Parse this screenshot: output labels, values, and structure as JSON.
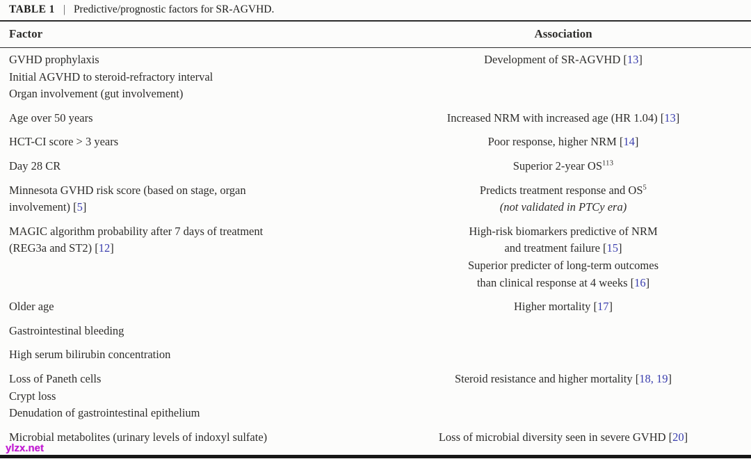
{
  "caption": {
    "label": "TABLE 1",
    "separator": "|",
    "title": "Predictive/prognostic factors for SR-AGVHD."
  },
  "header": {
    "factor": "Factor",
    "association": "Association"
  },
  "colors": {
    "text": "#2e2d2b",
    "rule": "#2b2b2b",
    "citation": "#3b3fae",
    "watermark": "#c016d2",
    "background": "#fcfcfb"
  },
  "watermark": "ylzx.net",
  "rows": [
    {
      "factor": [
        [
          "GVHD prophylaxis"
        ],
        [
          "Initial AGVHD to steroid-refractory interval"
        ],
        [
          "Organ involvement (gut involvement)"
        ]
      ],
      "association": [
        [
          "Development of SR-AGVHD [",
          {
            "t": "13",
            "s": "cite"
          },
          "]"
        ]
      ]
    },
    {
      "factor": [
        [
          "Age over 50 years"
        ]
      ],
      "association": [
        [
          "Increased NRM with increased age (HR 1.04) [",
          {
            "t": "13",
            "s": "cite"
          },
          "]"
        ]
      ]
    },
    {
      "factor": [
        [
          "HCT-CI score > 3 years"
        ]
      ],
      "association": [
        [
          "Poor response, higher NRM [",
          {
            "t": "14",
            "s": "cite"
          },
          "]"
        ]
      ]
    },
    {
      "factor": [
        [
          "Day 28 CR"
        ]
      ],
      "association": [
        [
          "Superior 2-year OS",
          {
            "t": "113",
            "s": "sup"
          }
        ]
      ]
    },
    {
      "factor": [
        [
          "Minnesota GVHD risk score (based on stage, organ"
        ],
        [
          "involvement) [",
          {
            "t": "5",
            "s": "cite"
          },
          "]"
        ]
      ],
      "association": [
        [
          "Predicts treatment response and OS",
          {
            "t": "5",
            "s": "sup"
          }
        ],
        [
          {
            "t": "(not validated in PTCy era)",
            "s": "italic"
          }
        ]
      ]
    },
    {
      "factor": [
        [
          "MAGIC algorithm probability after 7 days of treatment"
        ],
        [
          "(REG3a and ST2) [",
          {
            "t": "12",
            "s": "cite"
          },
          "]"
        ]
      ],
      "association": [
        [
          "High-risk biomarkers predictive of NRM"
        ],
        [
          "and treatment failure [",
          {
            "t": "15",
            "s": "cite"
          },
          "]"
        ],
        [
          "Superior predicter of long-term outcomes"
        ],
        [
          "than clinical response at 4 weeks [",
          {
            "t": "16",
            "s": "cite"
          },
          "]"
        ]
      ]
    },
    {
      "factor": [
        [
          "Older age"
        ]
      ],
      "association": [
        [
          "Higher mortality [",
          {
            "t": "17",
            "s": "cite"
          },
          "]"
        ]
      ]
    },
    {
      "factor": [
        [
          "Gastrointestinal bleeding"
        ]
      ],
      "association": []
    },
    {
      "factor": [
        [
          "High serum bilirubin concentration"
        ]
      ],
      "association": []
    },
    {
      "factor": [
        [
          "Loss of Paneth cells"
        ],
        [
          "Crypt loss"
        ],
        [
          "Denudation of gastrointestinal epithelium"
        ]
      ],
      "association": [
        [
          "Steroid resistance and higher mortality [",
          {
            "t": "18, 19",
            "s": "cite"
          },
          "]"
        ]
      ]
    },
    {
      "factor": [
        [
          "Microbial metabolites (urinary levels of indoxyl sulfate)"
        ]
      ],
      "association": [
        [
          "Loss of microbial diversity seen in severe GVHD [",
          {
            "t": "20",
            "s": "cite"
          },
          "]"
        ]
      ]
    }
  ]
}
